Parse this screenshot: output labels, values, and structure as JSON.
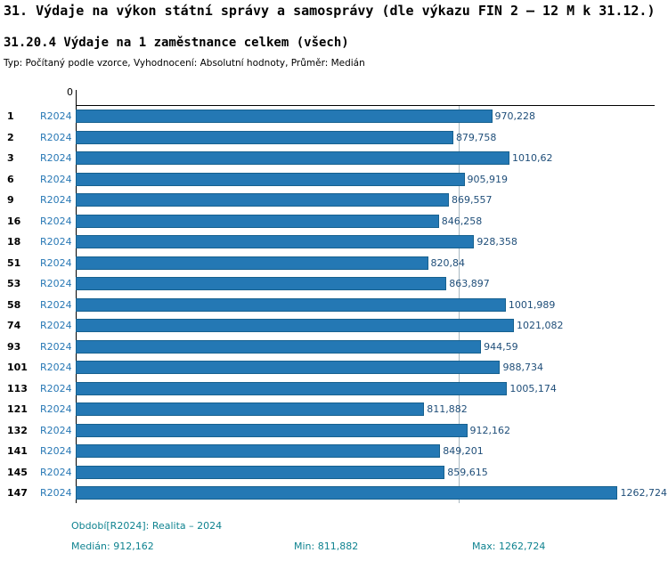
{
  "title": "31. Výdaje na výkon státní správy a samosprávy (dle výkazu FIN 2 – 12 M k 31.12.)",
  "subtitle": "31.20.4 Výdaje na 1 zaměstnance celkem (všech)",
  "meta": "Typ: Počítaný podle vzorce, Vyhodnocení: Absolutní hodnoty, Průměr: Medián",
  "axis": {
    "zero_label": "0"
  },
  "chart_data": {
    "type": "bar",
    "orientation": "horizontal",
    "title": "31.20.4 Výdaje na 1 zaměstnance celkem (všech)",
    "categories": [
      "1",
      "2",
      "3",
      "6",
      "9",
      "16",
      "18",
      "51",
      "53",
      "58",
      "74",
      "93",
      "101",
      "113",
      "121",
      "132",
      "141",
      "145",
      "147"
    ],
    "series_label": "R2024",
    "values": [
      970.228,
      879.758,
      1010.62,
      905.919,
      869.557,
      846.258,
      928.358,
      820.84,
      863.897,
      1001.989,
      1021.082,
      944.59,
      988.734,
      1005.174,
      811.882,
      912.162,
      849.201,
      859.615,
      1262.724
    ],
    "value_labels": [
      "970,228",
      "879,758",
      "1010,62",
      "905,919",
      "869,557",
      "846,258",
      "928,358",
      "820,84",
      "863,897",
      "1001,989",
      "1021,082",
      "944,59",
      "988,734",
      "1005,174",
      "811,882",
      "912,162",
      "849,201",
      "859,615",
      "1262,724"
    ],
    "xlim": [
      0,
      1380
    ],
    "median": 912.162,
    "min": 811.882,
    "max": 1262.724,
    "bar_color": "#2478b4",
    "bar_border_color": "#17618f",
    "median_line_color": "#a9b9c2",
    "legend_position": "bottom",
    "grid": false
  },
  "footer": {
    "period": "Období[R2024]: Realita – 2024",
    "median": "Medián: 912,162",
    "min": "Min: 811,882",
    "max": "Max: 1262,724"
  }
}
